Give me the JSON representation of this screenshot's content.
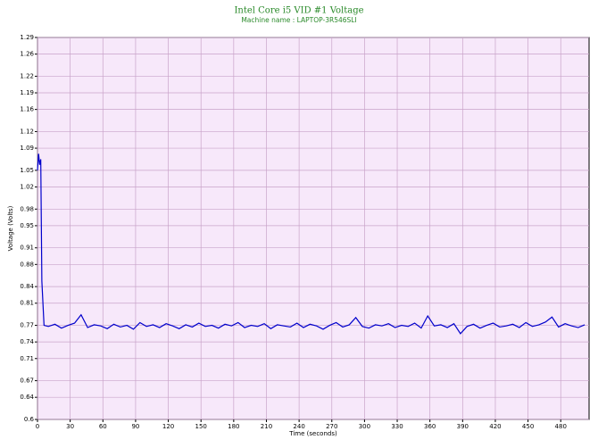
{
  "chart_data": {
    "type": "line",
    "title": "Intel Core i5 VID #1 Voltage",
    "subtitle": "Machine name : LAPTOP-3R546SLI",
    "x_label": "Time (seconds)",
    "y_label": "Voltage (Volts)",
    "x": [
      0,
      1,
      2,
      3,
      4,
      6,
      10,
      16,
      22,
      28,
      34,
      40,
      46,
      52,
      58,
      64,
      70,
      76,
      82,
      88,
      94,
      100,
      106,
      112,
      118,
      124,
      130,
      136,
      142,
      148,
      154,
      160,
      166,
      172,
      178,
      184,
      190,
      196,
      202,
      208,
      214,
      220,
      226,
      232,
      238,
      244,
      250,
      256,
      262,
      268,
      274,
      280,
      286,
      292,
      298,
      304,
      310,
      316,
      322,
      328,
      334,
      340,
      346,
      352,
      358,
      364,
      370,
      376,
      382,
      388,
      394,
      400,
      406,
      412,
      418,
      424,
      430,
      436,
      442,
      448,
      454,
      460,
      466,
      472,
      478,
      484,
      490,
      496,
      502
    ],
    "series": [
      {
        "name": "Intel Core i5 VID #1",
        "color": "#0000cc",
        "values": [
          1.05,
          1.08,
          1.06,
          1.07,
          0.85,
          0.77,
          0.768,
          0.772,
          0.765,
          0.77,
          0.774,
          0.789,
          0.766,
          0.771,
          0.769,
          0.764,
          0.772,
          0.767,
          0.77,
          0.763,
          0.775,
          0.768,
          0.771,
          0.766,
          0.773,
          0.769,
          0.764,
          0.771,
          0.767,
          0.774,
          0.768,
          0.77,
          0.765,
          0.772,
          0.769,
          0.775,
          0.766,
          0.77,
          0.768,
          0.773,
          0.764,
          0.771,
          0.769,
          0.767,
          0.774,
          0.766,
          0.772,
          0.769,
          0.763,
          0.77,
          0.775,
          0.767,
          0.771,
          0.784,
          0.768,
          0.765,
          0.771,
          0.769,
          0.773,
          0.766,
          0.77,
          0.768,
          0.774,
          0.765,
          0.787,
          0.769,
          0.771,
          0.766,
          0.773,
          0.755,
          0.768,
          0.772,
          0.765,
          0.77,
          0.774,
          0.767,
          0.769,
          0.772,
          0.766,
          0.775,
          0.768,
          0.771,
          0.776,
          0.785,
          0.767,
          0.773,
          0.769,
          0.766,
          0.771
        ]
      }
    ],
    "xlim": [
      0,
      506
    ],
    "xticks": [
      0,
      30,
      60,
      90,
      120,
      150,
      180,
      210,
      240,
      270,
      300,
      330,
      360,
      390,
      420,
      450,
      480
    ],
    "ylim": [
      0.6,
      1.29
    ],
    "yticks": [
      0.6,
      0.64,
      0.67,
      0.71,
      0.74,
      0.77,
      0.81,
      0.84,
      0.88,
      0.91,
      0.95,
      0.98,
      1.02,
      1.05,
      1.09,
      1.12,
      1.16,
      1.19,
      1.22,
      1.26,
      1.29
    ],
    "grid": true
  }
}
